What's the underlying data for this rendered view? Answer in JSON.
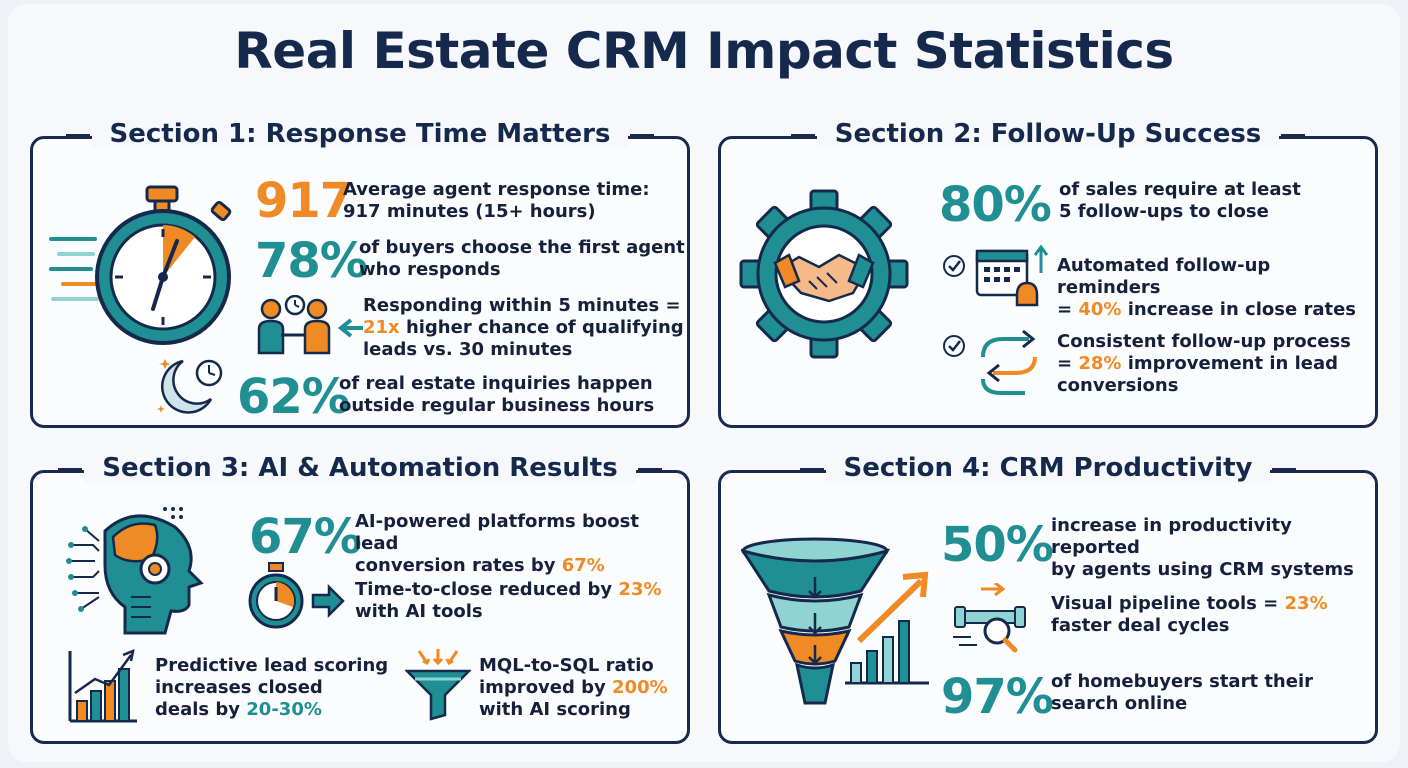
{
  "title": "Real Estate CRM Impact Statistics",
  "section1": {
    "title": "Section 1: Response Time Matters",
    "stat1": {
      "value": "917",
      "line1": "Average agent response time:",
      "line2": "917 minutes (15+ hours)"
    },
    "stat2": {
      "value": "78%",
      "line1": "of buyers choose the first agent",
      "line2": "who responds"
    },
    "stat3": {
      "line1": "Responding within 5 minutes =",
      "highlight": "21x",
      "line2_rest": " higher chance of qualifying",
      "line3": "leads vs. 30 minutes"
    },
    "stat4": {
      "value": "62%",
      "line1": "of real estate inquiries happen",
      "line2": "outside regular business hours"
    }
  },
  "section2": {
    "title": "Section 2: Follow-Up Success",
    "stat1": {
      "value": "80%",
      "line1": "of sales require at least",
      "line2": "5 follow-ups to close"
    },
    "stat2": {
      "line1": "Automated follow-up reminders",
      "prefix": "= ",
      "highlight": "40%",
      "rest": " increase in close rates"
    },
    "stat3": {
      "line1": "Consistent follow-up process",
      "prefix": "= ",
      "highlight": "28%",
      "rest": " improvement in lead",
      "line3": "conversions"
    }
  },
  "section3": {
    "title": "Section 3: AI & Automation Results",
    "stat1": {
      "value": "67%",
      "line1": "AI-powered platforms boost lead",
      "line2": "conversion rates by ",
      "highlight": "67%"
    },
    "stat2": {
      "line1": "Time-to-close reduced by ",
      "highlight": "23%",
      "line2": "with AI tools"
    },
    "stat3": {
      "line1": "Predictive lead scoring",
      "line2": "increases closed",
      "line3": "deals by ",
      "highlight": "20-30%"
    },
    "stat4": {
      "line1": "MQL-to-SQL ratio",
      "line2": "improved by ",
      "highlight": "200%",
      "line3": "with AI scoring"
    }
  },
  "section4": {
    "title": "Section 4: CRM Productivity",
    "stat1": {
      "value": "50%",
      "line1": "increase in productivity reported",
      "line2": "by agents using CRM systems"
    },
    "stat2": {
      "line1": "Visual pipeline tools = ",
      "highlight": "23%",
      "line2": "faster deal cycles"
    },
    "stat3": {
      "value": "97%",
      "line1": "of homebuyers start their",
      "line2": "search online"
    }
  },
  "colors": {
    "navy": "#15294d",
    "teal": "#1f8f94",
    "orange": "#f08a24",
    "light_teal": "#8fd3d3"
  }
}
